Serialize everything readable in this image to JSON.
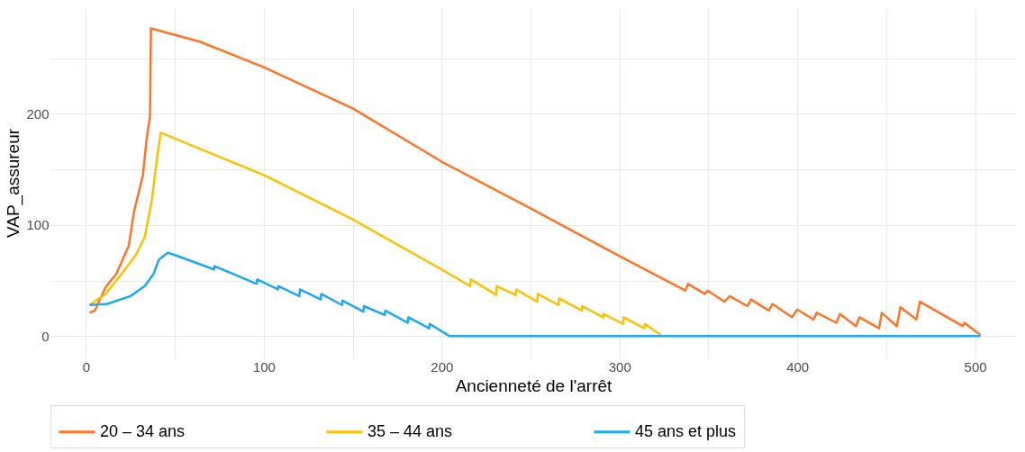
{
  "chart_data": {
    "type": "line",
    "xlabel": "Ancienneté de l'arrêt",
    "ylabel": "VAP_assureur",
    "xlim": [
      -20,
      523
    ],
    "ylim": [
      -20,
      296
    ],
    "xticks": [
      0,
      {
        "value": 50,
        "label": null
      },
      100,
      {
        "value": 150,
        "label": null
      },
      200,
      {
        "value": 250,
        "label": null
      },
      300,
      {
        "value": 350,
        "label": null
      },
      400,
      {
        "value": 450,
        "label": null
      },
      500
    ],
    "yticks": [
      0,
      {
        "value": 50,
        "label": null
      },
      100,
      {
        "value": 150,
        "label": null
      },
      200,
      {
        "value": 250,
        "label": null
      }
    ],
    "grid": true,
    "legend": "bottom",
    "line_style": "solid",
    "marker": "none",
    "series": [
      {
        "name": "20 – 34 ans",
        "color": "#ff7527",
        "x": [
          2,
          5,
          11,
          17,
          24,
          27,
          32,
          34,
          36,
          36.5,
          64,
          100,
          150,
          200,
          250,
          300,
          337,
          338.6,
          348,
          349.6,
          359,
          362,
          372,
          374,
          384,
          386,
          397,
          400,
          409,
          411,
          422,
          424,
          433,
          435,
          446,
          447.5,
          456,
          458,
          467,
          469,
          493,
          494,
          503
        ],
        "values": [
          21,
          23,
          44,
          56,
          81,
          112,
          145,
          176,
          198,
          277,
          265,
          242,
          205,
          157,
          115,
          72,
          41,
          47,
          38,
          41,
          31,
          36,
          27,
          33,
          23,
          29,
          17,
          24,
          15,
          21,
          12,
          20,
          9,
          17,
          7,
          21,
          9,
          26,
          15,
          31,
          9,
          12,
          1
        ]
      },
      {
        "name": "35 – 44 ans",
        "color": "#ffc000",
        "x": [
          2,
          11,
          20,
          28,
          33,
          37,
          40,
          42,
          100,
          150,
          200,
          216,
          216.5,
          230.7,
          231,
          241.7,
          242,
          253.8,
          254,
          265.8,
          266,
          278.9,
          279,
          290.9,
          291,
          302,
          302.3,
          314,
          314.3,
          324
        ],
        "values": [
          28,
          38,
          56,
          73,
          89,
          122,
          161,
          183,
          145,
          105,
          60,
          45,
          51,
          37,
          45,
          37,
          42,
          31,
          38,
          28,
          34,
          23,
          27,
          17,
          20,
          11,
          17,
          7,
          11,
          0
        ]
      },
      {
        "name": "45 ans et plus",
        "color": "#1ea8f5",
        "x": [
          2,
          12,
          25,
          33,
          38,
          41,
          46,
          50,
          72,
          72.3,
          96,
          96.3,
          108,
          108.3,
          120,
          120.3,
          132,
          132.3,
          144,
          144.3,
          156,
          156.3,
          168,
          168.3,
          181,
          181.3,
          193,
          193.3,
          204.5,
          503
        ],
        "values": [
          28,
          29,
          36,
          45,
          56,
          69,
          75,
          73,
          60,
          63,
          47,
          51,
          42,
          45,
          36,
          42,
          33,
          38,
          28,
          32,
          22,
          27,
          19,
          23,
          12,
          17,
          7,
          11,
          0,
          0
        ]
      }
    ]
  }
}
